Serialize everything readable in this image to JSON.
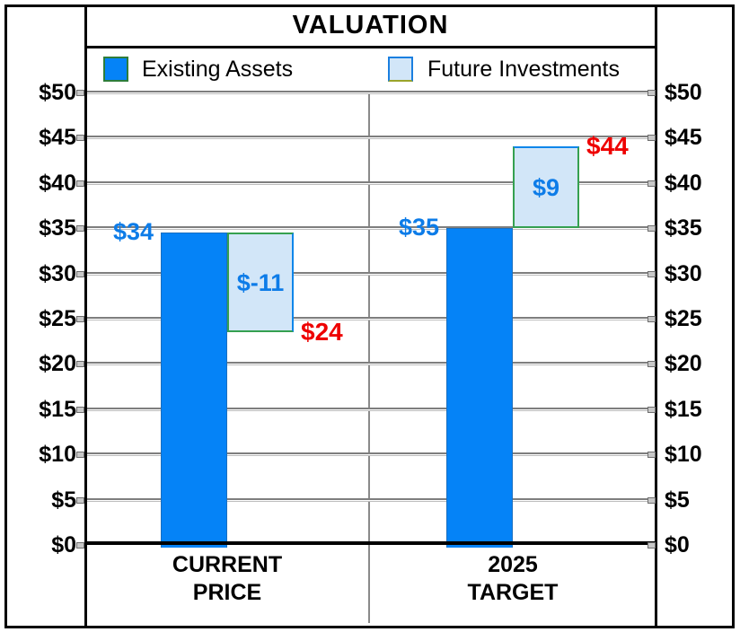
{
  "title": "VALUATION",
  "legend": {
    "items": [
      {
        "label": "Existing Assets",
        "series": "existing"
      },
      {
        "label": "Future Investments",
        "series": "future"
      }
    ]
  },
  "colors": {
    "existing_fill": "#0583f7",
    "future_fill": "#d2e6f8",
    "value_label_blue": "#0d7ce8",
    "value_label_red": "#ee0000",
    "gridline_gray": "#7e7e7e",
    "axis_black": "#000000"
  },
  "chart_data": {
    "type": "bar",
    "subtype": "waterfall",
    "title": "VALUATION",
    "legend_position": "top",
    "grid": true,
    "categories": [
      [
        "CURRENT",
        "PRICE"
      ],
      [
        "2025",
        "TARGET"
      ]
    ],
    "series": [
      {
        "name": "Existing Assets",
        "values": [
          34.5,
          35
        ]
      },
      {
        "name": "Future Investments",
        "values": [
          -11,
          9
        ]
      }
    ],
    "end_totals": [
      23.5,
      44
    ],
    "value_labels": {
      "start": [
        "$34",
        "$35"
      ],
      "delta": [
        "$-11",
        "$9"
      ],
      "end": [
        "$24",
        "$44"
      ]
    },
    "y_axis": {
      "min": 0,
      "max": 50,
      "step": 5,
      "format": "dollar",
      "side": "both",
      "ticks": [
        "$50",
        "$45",
        "$40",
        "$35",
        "$30",
        "$25",
        "$20",
        "$15",
        "$10",
        "$5",
        "$0"
      ]
    }
  }
}
